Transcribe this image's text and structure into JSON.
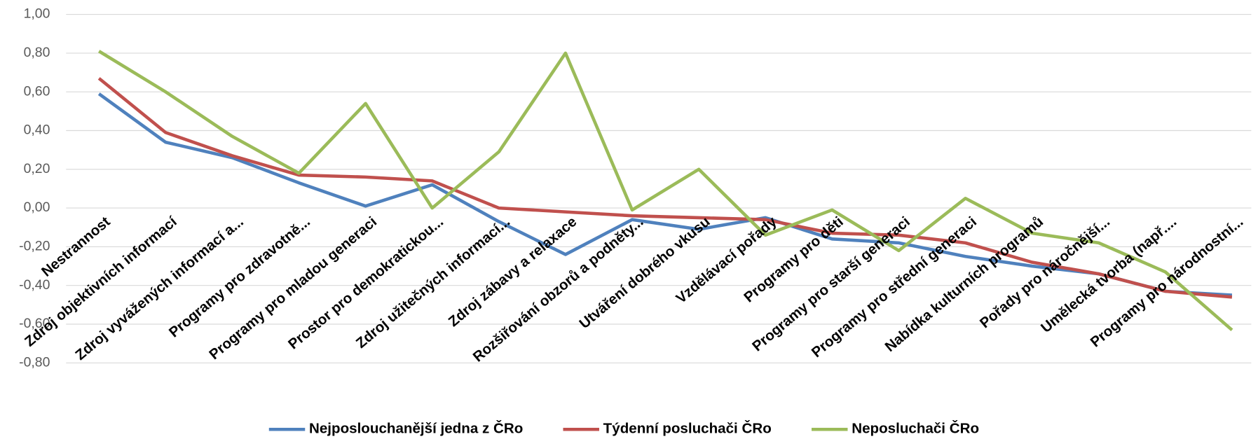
{
  "chart_data": {
    "type": "line",
    "categories": [
      "Nestrannost",
      "Zdroj objektivních informací",
      "Zdroj vyvážených informací a...",
      "Programy pro zdravotně...",
      "Programy pro mladou generaci",
      "Prostor pro demokratickou...",
      "Zdroj užitečných informací...",
      "Zdroj zábavy a relaxace",
      "Rozšiřování obzorů a podněty...",
      "Utváření dobrého vkusu",
      "Vzdělávací pořady",
      "Programy pro děti",
      "Programy pro starší generaci",
      "Programy pro střední generaci",
      "Nabídka kulturních programů",
      "Pořady pro náročnější...",
      "Umělecká tvorba (např....",
      "Programy pro národnostní..."
    ],
    "series": [
      {
        "name": "Nejposlouchanější jedna z ČRo",
        "color": "#4f81bd",
        "values": [
          0.59,
          0.34,
          0.26,
          0.13,
          0.01,
          0.12,
          -0.07,
          -0.24,
          -0.06,
          -0.11,
          -0.05,
          -0.16,
          -0.18,
          -0.25,
          -0.3,
          -0.34,
          -0.43,
          -0.45
        ]
      },
      {
        "name": "Týdenní posluchači ČRo",
        "color": "#c0504d",
        "values": [
          0.67,
          0.39,
          0.27,
          0.17,
          0.16,
          0.14,
          0.0,
          -0.02,
          -0.04,
          -0.05,
          -0.06,
          -0.13,
          -0.14,
          -0.18,
          -0.28,
          -0.34,
          -0.43,
          -0.46
        ]
      },
      {
        "name": "Neposluchači ČRo",
        "color": "#9bbb59",
        "values": [
          0.81,
          0.6,
          0.37,
          0.18,
          0.54,
          0.0,
          0.29,
          0.8,
          -0.01,
          0.2,
          -0.14,
          -0.01,
          -0.22,
          0.05,
          -0.13,
          -0.18,
          -0.33,
          -0.63
        ]
      }
    ],
    "ylim": [
      -0.8,
      1.0
    ],
    "yticks": [
      {
        "value": 1.0,
        "label": "1,00"
      },
      {
        "value": 0.8,
        "label": "0,80"
      },
      {
        "value": 0.6,
        "label": "0,60"
      },
      {
        "value": 0.4,
        "label": "0,40"
      },
      {
        "value": 0.2,
        "label": "0,20"
      },
      {
        "value": 0,
        "label": "0,00"
      },
      {
        "value": -0.2,
        "label": "-0,20"
      },
      {
        "value": -0.4,
        "label": "-0,40"
      },
      {
        "value": -0.6,
        "label": "-0,60"
      },
      {
        "value": -0.8,
        "label": "-0,80"
      }
    ],
    "grid": true,
    "legend": "bottom"
  }
}
